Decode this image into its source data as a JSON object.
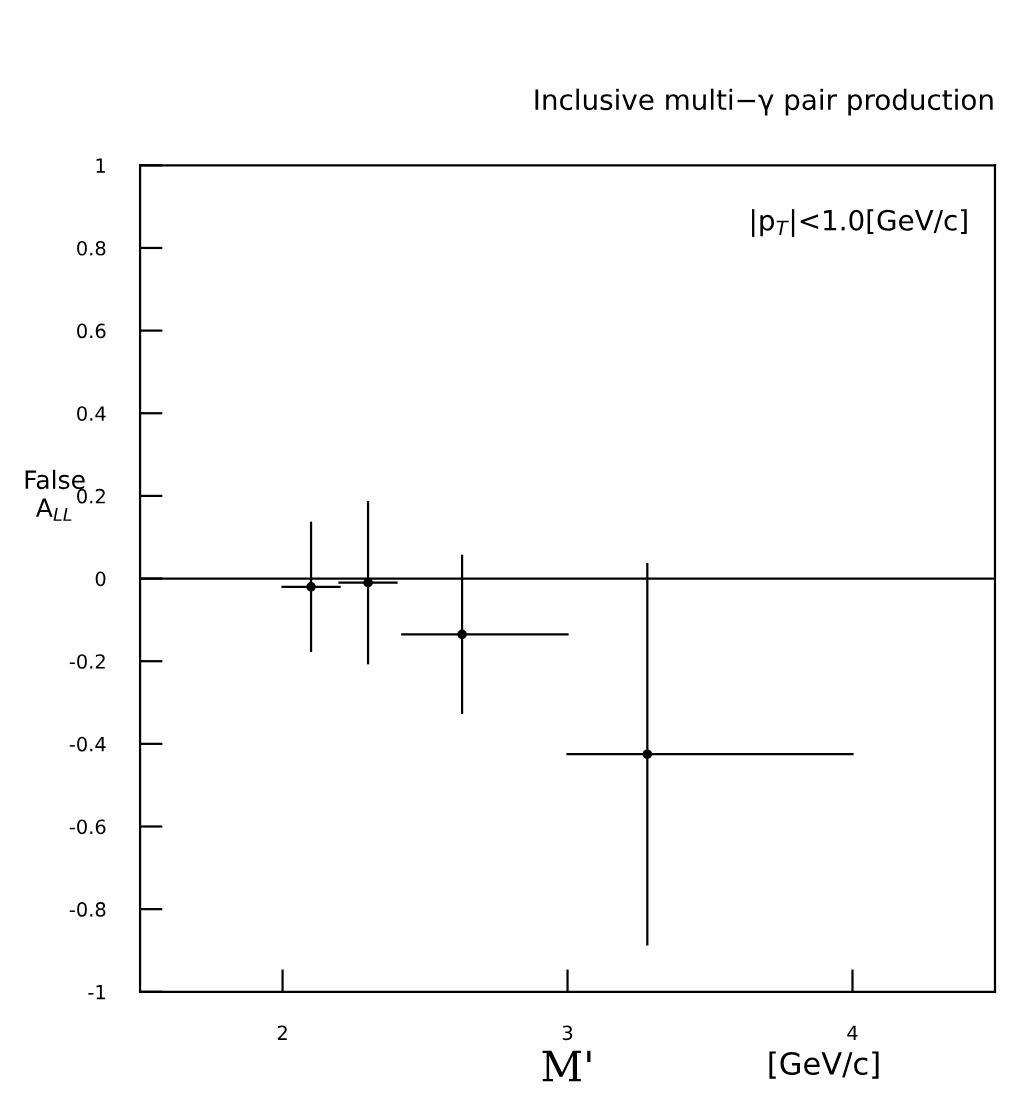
{
  "chart_data": {
    "type": "scatter",
    "title": "Inclusive multi−γ pair production",
    "xlabel": "M'",
    "ylabel": "False\nA$_{LL}$",
    "annotations": [
      "|p$_{T}$|<1.0[GeV/c]",
      "[GeV/c]"
    ],
    "x": [
      2.1,
      2.3,
      2.63,
      3.28
    ],
    "values": [
      -0.02,
      -0.01,
      -0.135,
      -0.425
    ],
    "errors": [
      0.155,
      0.195,
      [
        -0.325,
        0.055
      ],
      [
        -0.885,
        0.035
      ]
    ],
    "xerrors": [
      0.1,
      0.1,
      [
        2.42,
        3.0
      ],
      [
        3.0,
        4.0
      ]
    ],
    "color": "#000000",
    "marker": "circle",
    "xlim": [
      1.5,
      4.5
    ],
    "ylim": [
      -1,
      1
    ],
    "xticks": [
      2,
      3,
      4
    ],
    "yticks": [
      -1,
      -0.8,
      -0.6,
      -0.4,
      -0.2,
      0,
      0.2,
      0.4,
      0.6,
      0.8,
      1
    ],
    "ref_lines": [
      {
        "axis": "y",
        "value": 0
      }
    ],
    "grid": false,
    "legend": false
  }
}
